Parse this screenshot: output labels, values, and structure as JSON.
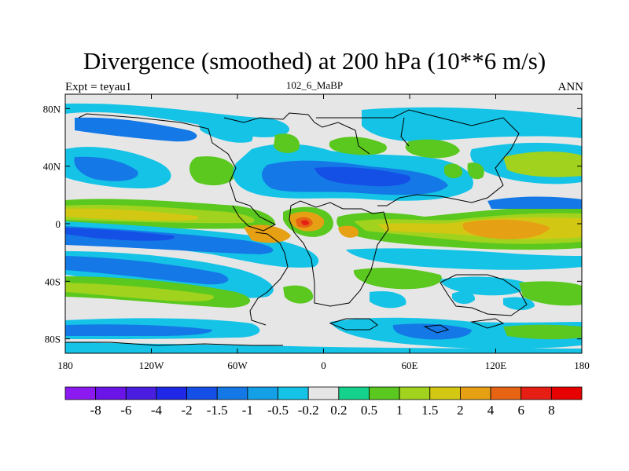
{
  "header": {
    "title": "Divergence (smoothed) at 200 hPa (10**6 m/s)",
    "left_label": "Expt = teyau1",
    "center_label": "102_6_MaBP",
    "right_label": "ANN"
  },
  "chart_data": {
    "type": "heatmap",
    "title": "Divergence (smoothed) at 200 hPa (10**6 m/s)",
    "variable": "Divergence (smoothed)",
    "level": "200 hPa",
    "units": "10**6 m/s",
    "experiment": "teyau1",
    "period": "ANN",
    "x_range": [
      -180,
      180
    ],
    "y_range": [
      -90,
      90
    ],
    "x_ticks": [
      {
        "value": -180,
        "label": "180"
      },
      {
        "value": -120,
        "label": "120W"
      },
      {
        "value": -60,
        "label": "60W"
      },
      {
        "value": 0,
        "label": "0"
      },
      {
        "value": 60,
        "label": "60E"
      },
      {
        "value": 120,
        "label": "120E"
      },
      {
        "value": 180,
        "label": "180"
      }
    ],
    "y_ticks": [
      {
        "value": 80,
        "label": "80N"
      },
      {
        "value": 40,
        "label": "40N"
      },
      {
        "value": 0,
        "label": "0"
      },
      {
        "value": -40,
        "label": "40S"
      },
      {
        "value": -80,
        "label": "80S"
      }
    ],
    "colorbar": {
      "labels": [
        "-8",
        "-6",
        "-4",
        "-2",
        "-1.5",
        "-1",
        "-0.5",
        "-0.2",
        "0.2",
        "0.5",
        "1",
        "1.5",
        "2",
        "4",
        "6",
        "8"
      ],
      "colors": [
        "#8c1af0",
        "#6a14e8",
        "#4a1ee0",
        "#1e28e6",
        "#1450e6",
        "#1478e6",
        "#14a0e6",
        "#14c3e6",
        "#e6e6e6",
        "#14d28c",
        "#5ac81e",
        "#a0d21e",
        "#d2c814",
        "#e6a014",
        "#e66414",
        "#e61e14",
        "#e60000"
      ]
    }
  }
}
